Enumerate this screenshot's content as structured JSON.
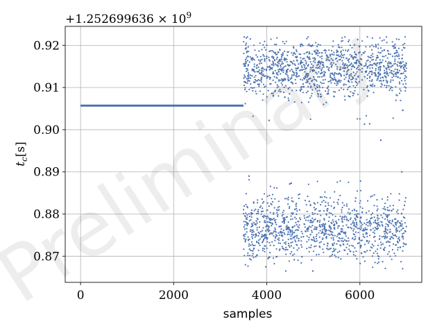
{
  "chart_data": {
    "type": "scatter",
    "title": "",
    "xlabel": "samples",
    "ylabel": "t_c[s]",
    "ylabel_main": "t",
    "ylabel_sub": "c",
    "ylabel_unit": "[s]",
    "offset_text": "+1.252699636 × 10",
    "offset_exponent": "9",
    "watermark": "Preliminary",
    "xlim": [
      -330,
      7330
    ],
    "ylim": [
      0.8638,
      0.9245
    ],
    "xticks": [
      0,
      2000,
      4000,
      6000
    ],
    "xtick_labels": [
      "0",
      "2000",
      "4000",
      "6000"
    ],
    "yticks": [
      0.87,
      0.88,
      0.89,
      0.9,
      0.91,
      0.92
    ],
    "ytick_labels": [
      "0.87",
      "0.88",
      "0.89",
      "0.90",
      "0.91",
      "0.92"
    ],
    "grid": true,
    "color": "#4c72b0",
    "series": [
      {
        "kind": "constant",
        "x": [
          0,
          3500
        ],
        "y": [
          0.9057,
          0.9057
        ]
      },
      {
        "kind": "scatter-cloud",
        "x": [
          3500,
          7000
        ],
        "mode_upper": {
          "center": 0.9145,
          "range": [
            0.9025,
            0.922
          ],
          "fraction": 0.5
        },
        "mode_lower": {
          "center": 0.8765,
          "range": [
            0.8665,
            0.8885
          ],
          "fraction": 0.5
        },
        "outliers": [
          {
            "x": 4050,
            "y": 0.9022
          },
          {
            "x": 4940,
            "y": 0.9025
          },
          {
            "x": 6100,
            "y": 0.9013
          },
          {
            "x": 6210,
            "y": 0.9014
          },
          {
            "x": 6450,
            "y": 0.8975
          },
          {
            "x": 6900,
            "y": 0.89
          },
          {
            "x": 3620,
            "y": 0.889
          },
          {
            "x": 4990,
            "y": 0.8665
          }
        ],
        "n_points": 2400
      }
    ]
  }
}
